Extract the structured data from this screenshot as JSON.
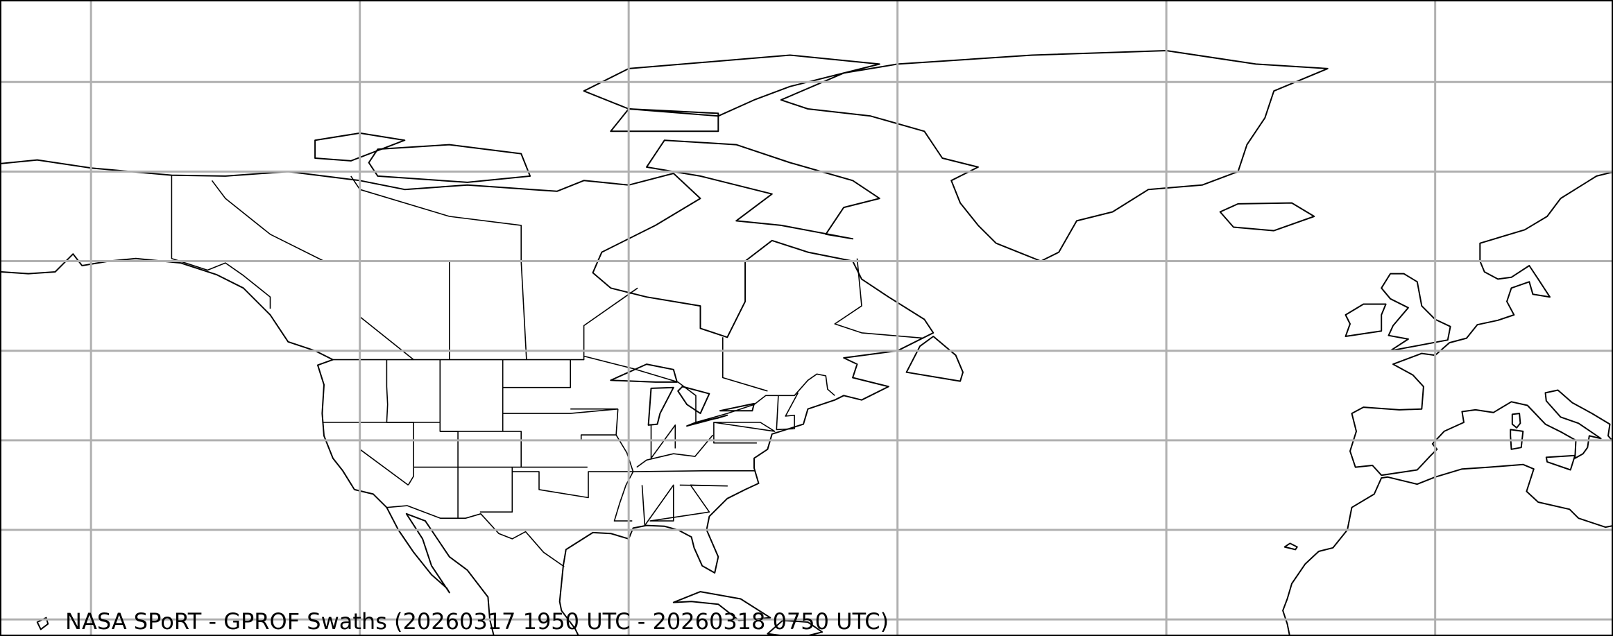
{
  "map": {
    "title": "NASA SPoRT - GPROF Swaths (20260317 1950 UTC - 20260318 0750 UTC)",
    "projection": "plate-carree",
    "extent_degrees": {
      "lon_min": -160,
      "lon_max": 20,
      "lat_min": 18,
      "lat_max": 89
    },
    "gridlines": {
      "longitudes": [
        -150,
        -120,
        -90,
        -60,
        -30,
        0
      ],
      "latitudes": [
        80,
        70,
        60,
        50,
        40,
        30,
        20
      ]
    },
    "layers": [
      "coastlines",
      "country-borders",
      "state-province-borders",
      "gridlines"
    ],
    "colors": {
      "background": "#ffffff",
      "coastline": "#000000",
      "gridline": "#b0b0b0",
      "text": "#000000"
    }
  }
}
